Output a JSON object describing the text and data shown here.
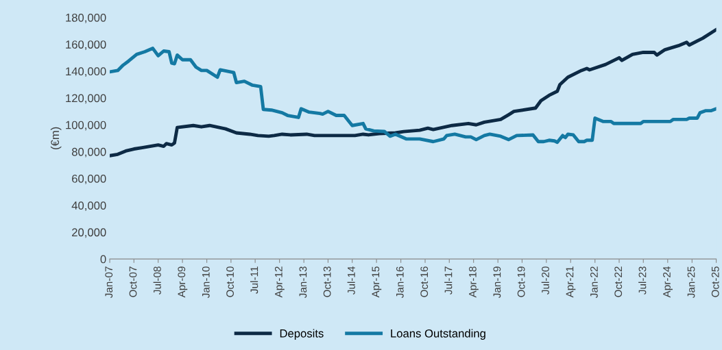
{
  "chart_data": {
    "type": "line",
    "ylabel": "(€m)",
    "legend": "bottom",
    "grid": false,
    "marker": "none",
    "line_style": "solid",
    "xlim": [
      "2007-01",
      "2025-10"
    ],
    "xticks": [
      {
        "value": "2007-01",
        "label": "Jan-07"
      },
      {
        "value": "2007-10",
        "label": "Oct-07"
      },
      {
        "value": "2008-07",
        "label": "Jul-08"
      },
      {
        "value": "2009-04",
        "label": "Apr-09"
      },
      {
        "value": "2010-01",
        "label": "Jan-10"
      },
      {
        "value": "2010-10",
        "label": "Oct-10"
      },
      {
        "value": "2011-07",
        "label": "Jul-11"
      },
      {
        "value": "2012-04",
        "label": "Apr-12"
      },
      {
        "value": "2013-01",
        "label": "Jan-13"
      },
      {
        "value": "2013-10",
        "label": "Oct-13"
      },
      {
        "value": "2014-07",
        "label": "Jul-14"
      },
      {
        "value": "2015-04",
        "label": "Apr-15"
      },
      {
        "value": "2016-01",
        "label": "Jan-16"
      },
      {
        "value": "2016-10",
        "label": "Oct-16"
      },
      {
        "value": "2017-07",
        "label": "Jul-17"
      },
      {
        "value": "2018-04",
        "label": "Apr-18"
      },
      {
        "value": "2019-01",
        "label": "Jan-19"
      },
      {
        "value": "2019-10",
        "label": "Oct-19"
      },
      {
        "value": "2020-07",
        "label": "Jul-20"
      },
      {
        "value": "2021-04",
        "label": "Apr-21"
      },
      {
        "value": "2022-01",
        "label": "Jan-22"
      },
      {
        "value": "2022-10",
        "label": "Oct-22"
      },
      {
        "value": "2023-07",
        "label": "Jul-23"
      },
      {
        "value": "2024-04",
        "label": "Apr-24"
      },
      {
        "value": "2025-01",
        "label": "Jan-25"
      },
      {
        "value": "2025-10",
        "label": "Oct-25"
      }
    ],
    "ylim": [
      0,
      180000
    ],
    "yticks": [
      {
        "value": 0,
        "label": "0"
      },
      {
        "value": 20000,
        "label": "20,000"
      },
      {
        "value": 40000,
        "label": "40,000"
      },
      {
        "value": 60000,
        "label": "60,000"
      },
      {
        "value": 80000,
        "label": "80,000"
      },
      {
        "value": 100000,
        "label": "100,000"
      },
      {
        "value": 120000,
        "label": "120,000"
      },
      {
        "value": 140000,
        "label": "140,000"
      },
      {
        "value": 160000,
        "label": "160,000"
      },
      {
        "value": 180000,
        "label": "180,000"
      }
    ],
    "series": [
      {
        "name": "Deposits",
        "color": "#0d2a45",
        "x": [
          "2007-01",
          "2007-04",
          "2007-07",
          "2007-10",
          "2008-01",
          "2008-07",
          "2008-09",
          "2008-10",
          "2008-12",
          "2009-01",
          "2009-02",
          "2009-08",
          "2009-11",
          "2010-02",
          "2010-08",
          "2010-12",
          "2011-05",
          "2011-08",
          "2011-12",
          "2012-02",
          "2012-05",
          "2012-08",
          "2013-02",
          "2013-05",
          "2014-08",
          "2014-11",
          "2015-01",
          "2015-05",
          "2015-11",
          "2016-02",
          "2016-08",
          "2016-11",
          "2017-01",
          "2017-08",
          "2018-02",
          "2018-05",
          "2018-08",
          "2019-02",
          "2019-05",
          "2019-07",
          "2020-03",
          "2020-05",
          "2020-08",
          "2020-11",
          "2020-12",
          "2021-03",
          "2021-08",
          "2021-10",
          "2021-11",
          "2022-05",
          "2022-10",
          "2022-11",
          "2023-03",
          "2023-07",
          "2023-11",
          "2023-12",
          "2024-03",
          "2024-08",
          "2024-11",
          "2024-12",
          "2025-05",
          "2025-10"
        ],
        "values": [
          77000,
          78000,
          80500,
          82000,
          83000,
          85000,
          84000,
          86000,
          85000,
          86500,
          98000,
          99500,
          98500,
          99500,
          97000,
          94000,
          93000,
          92000,
          91500,
          92000,
          93000,
          92500,
          93000,
          92000,
          92000,
          93000,
          92500,
          93500,
          94000,
          95000,
          96000,
          97500,
          96500,
          99500,
          101000,
          100000,
          102000,
          104000,
          107500,
          110000,
          112500,
          118000,
          122000,
          125000,
          130000,
          135500,
          140500,
          142000,
          141000,
          145000,
          150000,
          148000,
          152500,
          154000,
          154000,
          152000,
          156000,
          159000,
          161500,
          159500,
          164500,
          171000
        ]
      },
      {
        "name": "Loans Outstanding",
        "color": "#1479a3",
        "x": [
          "2007-01",
          "2007-04",
          "2007-06",
          "2007-08",
          "2007-11",
          "2008-02",
          "2008-05",
          "2008-07",
          "2008-09",
          "2008-11",
          "2008-12",
          "2009-01",
          "2009-02",
          "2009-04",
          "2009-07",
          "2009-09",
          "2009-11",
          "2010-01",
          "2010-05",
          "2010-06",
          "2010-11",
          "2010-12",
          "2011-03",
          "2011-06",
          "2011-09",
          "2011-10",
          "2012-01",
          "2012-05",
          "2012-07",
          "2012-11",
          "2012-12",
          "2013-03",
          "2013-07",
          "2013-08",
          "2013-10",
          "2014-01",
          "2014-04",
          "2014-07",
          "2014-11",
          "2014-12",
          "2015-03",
          "2015-07",
          "2015-09",
          "2015-11",
          "2016-03",
          "2016-08",
          "2017-01",
          "2017-05",
          "2017-06",
          "2017-09",
          "2018-01",
          "2018-03",
          "2018-05",
          "2018-08",
          "2018-10",
          "2019-02",
          "2019-05",
          "2019-08",
          "2020-02",
          "2020-04",
          "2020-06",
          "2020-08",
          "2020-10",
          "2020-11",
          "2021-01",
          "2021-02",
          "2021-03",
          "2021-05",
          "2021-07",
          "2021-09",
          "2021-10",
          "2021-12",
          "2022-01",
          "2022-04",
          "2022-07",
          "2022-08",
          "2023-06",
          "2023-07",
          "2024-05",
          "2024-06",
          "2024-11",
          "2024-12",
          "2025-03",
          "2025-04",
          "2025-06",
          "2025-08",
          "2025-10"
        ],
        "values": [
          139500,
          140500,
          144500,
          147500,
          152500,
          154500,
          157000,
          151500,
          155000,
          154500,
          146000,
          145500,
          152000,
          148500,
          148500,
          143000,
          140500,
          140500,
          135500,
          141000,
          139000,
          131500,
          132500,
          129500,
          128500,
          111500,
          111000,
          109000,
          107000,
          105500,
          112000,
          109500,
          108500,
          108000,
          110000,
          107000,
          107000,
          99500,
          101000,
          97000,
          95500,
          95000,
          91500,
          93000,
          89500,
          89500,
          87500,
          89500,
          92000,
          93000,
          91000,
          91000,
          89000,
          92000,
          93000,
          91500,
          89000,
          92000,
          92500,
          87500,
          87500,
          88500,
          88000,
          87000,
          92000,
          90500,
          93000,
          92500,
          87500,
          87500,
          88500,
          88500,
          105000,
          102500,
          102500,
          101000,
          101000,
          102500,
          102500,
          104000,
          104000,
          105000,
          105000,
          109000,
          110500,
          110500,
          112000
        ]
      }
    ]
  }
}
